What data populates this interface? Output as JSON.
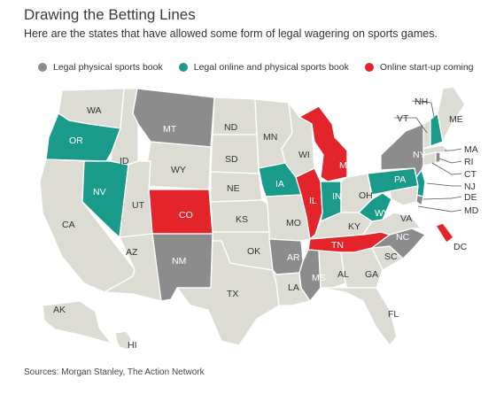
{
  "title": "Drawing the Betting Lines",
  "subtitle": "Here are the states that have allowed some form of legal wagering on sports games.",
  "colors": {
    "base": "#dcdcd4",
    "physical": "#8c8c8c",
    "online": "#1a9a8a",
    "coming": "#e3242b",
    "border": "#ffffff"
  },
  "legend": [
    {
      "label": "Legal physical sports book",
      "color": "#8c8c8c"
    },
    {
      "label": "Legal online and physical sports book",
      "color": "#1a9a8a"
    },
    {
      "label": "Online start-up coming",
      "color": "#e3242b"
    }
  ],
  "states": {
    "WA": "none",
    "OR": "online",
    "CA": "none",
    "NV": "online",
    "ID": "none",
    "MT": "physical",
    "WY": "none",
    "UT": "none",
    "CO": "coming",
    "AZ": "none",
    "NM": "physical",
    "ND": "none",
    "SD": "none",
    "NE": "none",
    "KS": "none",
    "OK": "none",
    "TX": "none",
    "MN": "none",
    "IA": "online",
    "MO": "none",
    "AR": "physical",
    "LA": "none",
    "WI": "none",
    "IL": "coming",
    "MI": "coming",
    "IN": "online",
    "OH": "none",
    "KY": "none",
    "TN": "coming",
    "MS": "physical",
    "AL": "none",
    "GA": "none",
    "FL": "none",
    "SC": "none",
    "NC": "physical",
    "VA": "none",
    "WV": "online",
    "PA": "online",
    "NY": "physical",
    "NJ": "online",
    "DE": "physical",
    "MD": "none",
    "CT": "none",
    "RI": "physical",
    "MA": "none",
    "VT": "none",
    "NH": "online",
    "ME": "none",
    "DC": "coming",
    "AK": "none",
    "HI": "none"
  },
  "map_labels": {
    "WA": "WA",
    "OR": "OR",
    "CA": "CA",
    "NV": "NV",
    "ID": "ID",
    "MT": "MT",
    "WY": "WY",
    "UT": "UT",
    "CO": "CO",
    "AZ": "AZ",
    "NM": "NM",
    "ND": "ND",
    "SD": "SD",
    "NE": "NE",
    "KS": "KS",
    "OK": "OK",
    "TX": "TX",
    "MN": "MN",
    "IA": "IA",
    "MO": "MO",
    "AR": "AR",
    "LA": "LA",
    "WI": "WI",
    "IL": "IL",
    "MI": "MI",
    "IN": "IN",
    "OH": "OH",
    "KY": "KY",
    "TN": "TN",
    "MS": "MS",
    "AL": "AL",
    "GA": "GA",
    "FL": "FL",
    "SC": "SC",
    "NC": "NC",
    "VA": "VA",
    "WV": "WV",
    "PA": "PA",
    "NY": "NY",
    "NJ": "NJ",
    "DE": "DE",
    "MD": "MD",
    "CT": "CT",
    "RI": "RI",
    "MA": "MA",
    "VT": "VT",
    "NH": "NH",
    "ME": "ME",
    "DC": "DC",
    "AK": "AK",
    "HI": "HI"
  },
  "sources": "Sources: Morgan Stanley, The Action Network"
}
